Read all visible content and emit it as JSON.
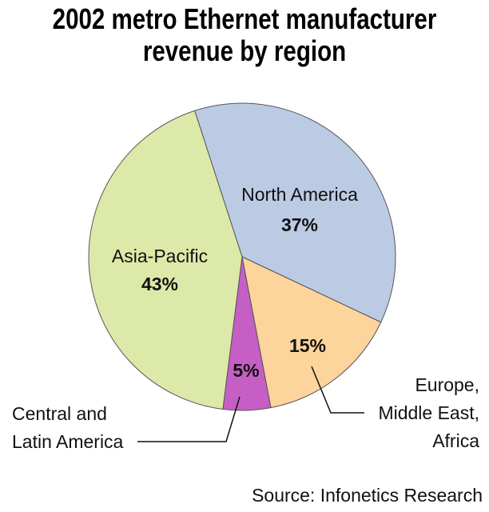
{
  "chart_data": {
    "type": "pie",
    "title": "2002 metro Ethernet manufacturer revenue by region",
    "categories": [
      "North America",
      "Europe, Middle East, Africa",
      "Central and Latin America",
      "Asia-Pacific"
    ],
    "values": [
      37,
      15,
      5,
      43
    ],
    "value_labels": [
      "37%",
      "15%",
      "5%",
      "43%"
    ],
    "colors": [
      "#bccbe4",
      "#fdd49c",
      "#c65fc5",
      "#dde9a9"
    ],
    "source": "Source: Infonetics Research"
  }
}
